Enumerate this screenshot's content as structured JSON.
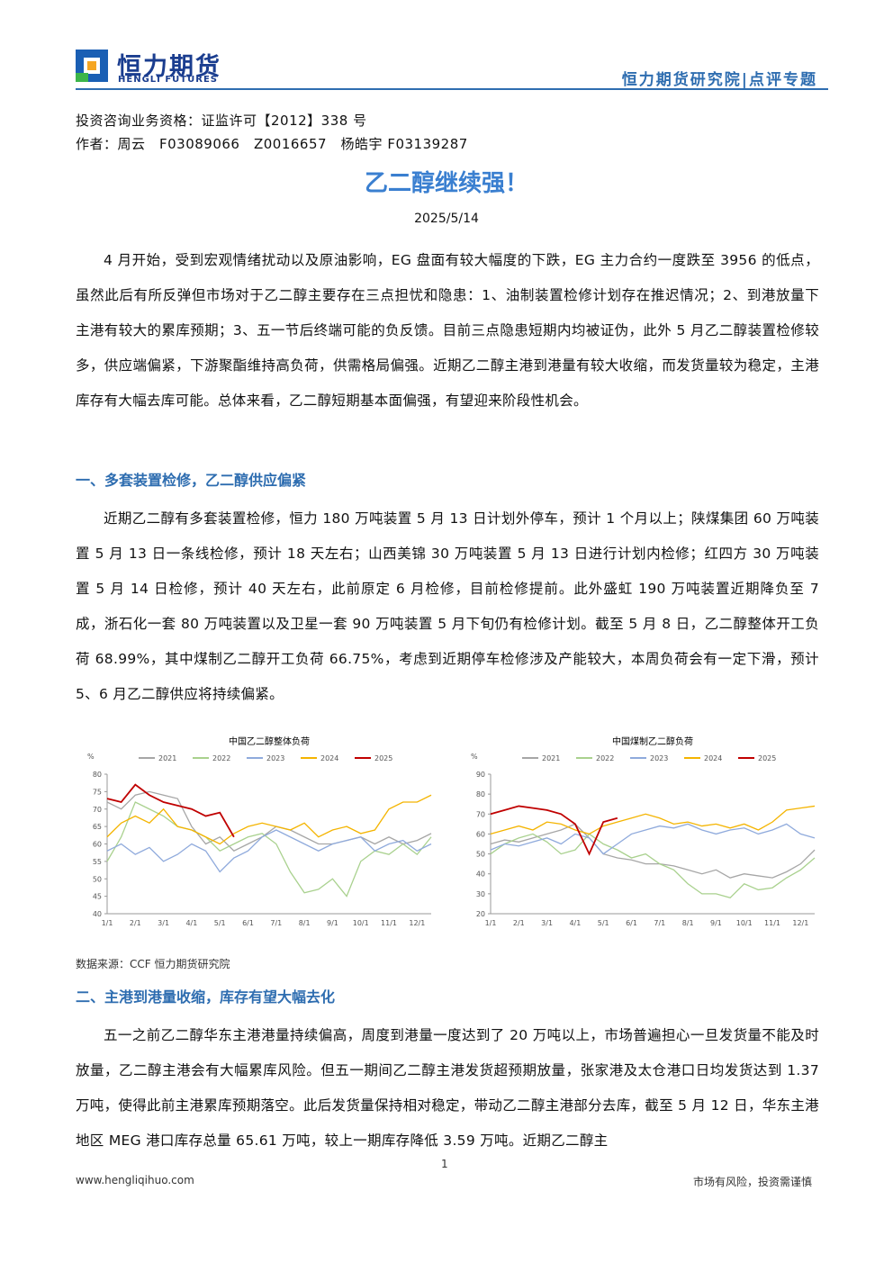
{
  "header": {
    "brand": "恒力期货",
    "brand_en": "HENGLI FUTURES",
    "dept": "恒力期货研究院|点评专题"
  },
  "meta": {
    "license": "投资咨询业务资格：证监许可【2012】338 号",
    "authors": "作者：周云　F03089066　Z0016657　杨皓宇 F03139287"
  },
  "title": "乙二醇继续强！",
  "date": "2025/5/14",
  "intro": "4 月开始，受到宏观情绪扰动以及原油影响，EG 盘面有较大幅度的下跌，EG 主力合约一度跌至 3956 的低点，虽然此后有所反弹但市场对于乙二醇主要存在三点担忧和隐患：1、油制装置检修计划存在推迟情况；2、到港放量下主港有较大的累库预期；3、五一节后终端可能的负反馈。目前三点隐患短期内均被证伪，此外 5 月乙二醇装置检修较多，供应端偏紧，下游聚酯维持高负荷，供需格局偏强。近期乙二醇主港到港量有较大收缩，而发货量较为稳定，主港库存有大幅去库可能。总体来看，乙二醇短期基本面偏强，有望迎来阶段性机会。",
  "sections": [
    {
      "heading": "一、多套装置检修，乙二醇供应偏紧",
      "text": "近期乙二醇有多套装置检修，恒力 180 万吨装置 5 月 13 日计划外停车，预计 1 个月以上；陕煤集团 60 万吨装置 5 月 13 日一条线检修，预计 18 天左右；山西美锦 30 万吨装置 5 月 13 日进行计划内检修；红四方 30 万吨装置 5 月 14 日检修，预计 40 天左右，此前原定 6 月检修，目前检修提前。此外盛虹 190 万吨装置近期降负至 7 成，浙石化一套 80 万吨装置以及卫星一套 90 万吨装置 5 月下旬仍有检修计划。截至 5 月 8 日，乙二醇整体开工负荷 68.99%，其中煤制乙二醇开工负荷 66.75%，考虑到近期停车检修涉及产能较大，本周负荷会有一定下滑，预计 5、6 月乙二醇供应将持续偏紧。"
    },
    {
      "heading": "二、主港到港量收缩，库存有望大幅去化",
      "text": "五一之前乙二醇华东主港港量持续偏高，周度到港量一度达到了 20 万吨以上，市场普遍担心一旦发货量不能及时放量，乙二醇主港会有大幅累库风险。但五一期间乙二醇主港发货超预期放量，张家港及太仓港口日均发货达到 1.37 万吨，使得此前主港累库预期落空。此后发货量保持相对稳定，带动乙二醇主港部分去库，截至 5 月 12 日，华东主港地区 MEG 港口库存总量 65.61 万吨，较上一期库存降低 3.59 万吨。近期乙二醇主"
    }
  ],
  "source": "数据来源：CCF 恒力期货研究院",
  "footer": {
    "site": "www.hengliqihuo.com",
    "page": "1",
    "risk": "市场有风险，投资需谨慎"
  },
  "chart_data": [
    {
      "type": "line",
      "title": "中国乙二醇整体负荷",
      "y_unit": "%",
      "categories": [
        "1/1",
        null,
        "2/1",
        null,
        "3/1",
        null,
        "4/1",
        null,
        "5/1",
        null,
        "6/1",
        null,
        "7/1",
        null,
        "8/1",
        null,
        "9/1",
        null,
        "10/1",
        null,
        "11/1",
        null,
        "12/1",
        null
      ],
      "ylim": [
        40,
        80
      ],
      "yticks": [
        40,
        45,
        50,
        55,
        60,
        65,
        70,
        75,
        80
      ],
      "series": [
        {
          "name": "2021",
          "color": "#a6a6a6",
          "values": [
            72,
            70,
            74,
            75,
            74,
            73,
            65,
            60,
            62,
            58,
            60,
            62,
            65,
            64,
            62,
            60,
            60,
            61,
            62,
            60,
            62,
            60,
            61,
            63
          ]
        },
        {
          "name": "2022",
          "color": "#a9d18e",
          "values": [
            55,
            62,
            72,
            70,
            68,
            65,
            64,
            62,
            58,
            60,
            62,
            63,
            60,
            52,
            46,
            47,
            50,
            45,
            55,
            58,
            57,
            60,
            57,
            62
          ]
        },
        {
          "name": "2023",
          "color": "#8faadc",
          "values": [
            58,
            60,
            57,
            59,
            55,
            57,
            60,
            58,
            52,
            56,
            58,
            62,
            64,
            62,
            60,
            58,
            60,
            61,
            62,
            58,
            60,
            61,
            58,
            60
          ]
        },
        {
          "name": "2024",
          "color": "#f4b400",
          "values": [
            62,
            66,
            68,
            66,
            70,
            65,
            64,
            62,
            60,
            63,
            65,
            66,
            65,
            64,
            66,
            62,
            64,
            65,
            63,
            64,
            70,
            72,
            72,
            74
          ]
        },
        {
          "name": "2025",
          "color": "#c00000",
          "values": [
            73,
            72,
            77,
            74,
            72,
            71,
            70,
            68,
            69,
            62,
            null,
            null,
            null,
            null,
            null,
            null,
            null,
            null,
            null,
            null,
            null,
            null,
            null,
            null
          ]
        }
      ]
    },
    {
      "type": "line",
      "title": "中国煤制乙二醇负荷",
      "y_unit": "%",
      "categories": [
        "1/1",
        null,
        "2/1",
        null,
        "3/1",
        null,
        "4/1",
        null,
        "5/1",
        null,
        "6/1",
        null,
        "7/1",
        null,
        "8/1",
        null,
        "9/1",
        null,
        "10/1",
        null,
        "11/1",
        null,
        "12/1",
        null
      ],
      "ylim": [
        20,
        90
      ],
      "yticks": [
        20,
        30,
        40,
        50,
        60,
        70,
        80,
        90
      ],
      "series": [
        {
          "name": "2021",
          "color": "#a6a6a6",
          "values": [
            55,
            57,
            56,
            58,
            60,
            62,
            65,
            58,
            50,
            48,
            47,
            45,
            45,
            44,
            42,
            40,
            42,
            38,
            40,
            39,
            38,
            41,
            45,
            52
          ]
        },
        {
          "name": "2022",
          "color": "#a9d18e",
          "values": [
            50,
            55,
            58,
            60,
            56,
            50,
            52,
            60,
            55,
            52,
            48,
            50,
            45,
            42,
            35,
            30,
            30,
            28,
            35,
            32,
            33,
            38,
            42,
            48
          ]
        },
        {
          "name": "2023",
          "color": "#8faadc",
          "values": [
            52,
            55,
            54,
            56,
            58,
            55,
            60,
            58,
            50,
            55,
            60,
            62,
            64,
            63,
            65,
            62,
            60,
            62,
            63,
            60,
            62,
            65,
            60,
            58
          ]
        },
        {
          "name": "2024",
          "color": "#f4b400",
          "values": [
            60,
            62,
            64,
            62,
            66,
            65,
            62,
            60,
            64,
            66,
            68,
            70,
            68,
            65,
            66,
            64,
            65,
            63,
            65,
            62,
            66,
            72,
            73,
            74
          ]
        },
        {
          "name": "2025",
          "color": "#c00000",
          "values": [
            70,
            72,
            74,
            73,
            72,
            70,
            65,
            50,
            66,
            68,
            null,
            null,
            null,
            null,
            null,
            null,
            null,
            null,
            null,
            null,
            null,
            null,
            null,
            null
          ]
        }
      ]
    }
  ]
}
